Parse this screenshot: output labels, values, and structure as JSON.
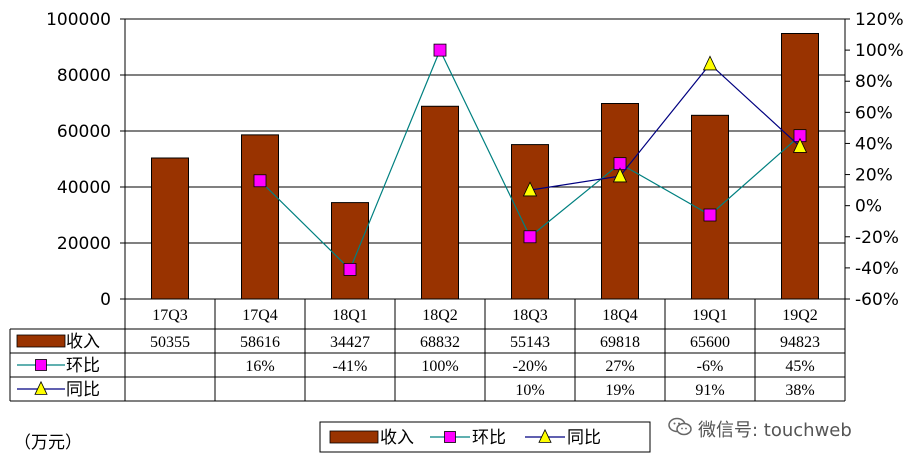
{
  "chart_data": {
    "type": "bar",
    "categories": [
      "17Q3",
      "17Q4",
      "18Q1",
      "18Q2",
      "18Q3",
      "18Q4",
      "19Q1",
      "19Q2"
    ],
    "series": [
      {
        "name": "收入",
        "kind": "bar",
        "axis": "left",
        "color": "#993300",
        "values": [
          50355,
          58616,
          34427,
          68832,
          55143,
          69818,
          65600,
          94823
        ],
        "labels": [
          "50355",
          "58616",
          "34427",
          "68832",
          "55143",
          "69818",
          "65600",
          "94823"
        ]
      },
      {
        "name": "环比",
        "kind": "line",
        "axis": "right",
        "color": "#008080",
        "marker": "square",
        "marker_color": "#ff00ff",
        "values": [
          null,
          16,
          -41,
          100,
          -20,
          27,
          -6,
          45
        ],
        "labels": [
          "",
          "16%",
          "-41%",
          "100%",
          "-20%",
          "27%",
          "-6%",
          "45%"
        ]
      },
      {
        "name": "同比",
        "kind": "line",
        "axis": "right",
        "color": "#000080",
        "marker": "triangle",
        "marker_color": "#ffff00",
        "values": [
          null,
          null,
          null,
          null,
          10,
          19,
          91,
          38
        ],
        "labels": [
          "",
          "",
          "",
          "",
          "10%",
          "19%",
          "91%",
          "38%"
        ]
      }
    ],
    "y_left": {
      "lim": [
        0,
        100000
      ],
      "ticks": [
        "0",
        "20000",
        "40000",
        "60000",
        "80000",
        "100000"
      ]
    },
    "y_right": {
      "lim": [
        -60,
        120
      ],
      "ticks": [
        "-60%",
        "-40%",
        "-20%",
        "0%",
        "20%",
        "40%",
        "60%",
        "80%",
        "100%",
        "120%"
      ]
    },
    "grid": "horizontal",
    "legend": "bottom-center",
    "data_table": true
  },
  "unit_label": "（万元）",
  "watermark": "微信号: touchweb",
  "colors": {
    "bar": "#993300",
    "mom_line": "#008080",
    "yoy_line": "#000080",
    "square_marker": "#ff00ff",
    "triangle_marker": "#ffff00"
  },
  "icons": {
    "watermark": "wechat-icon"
  }
}
